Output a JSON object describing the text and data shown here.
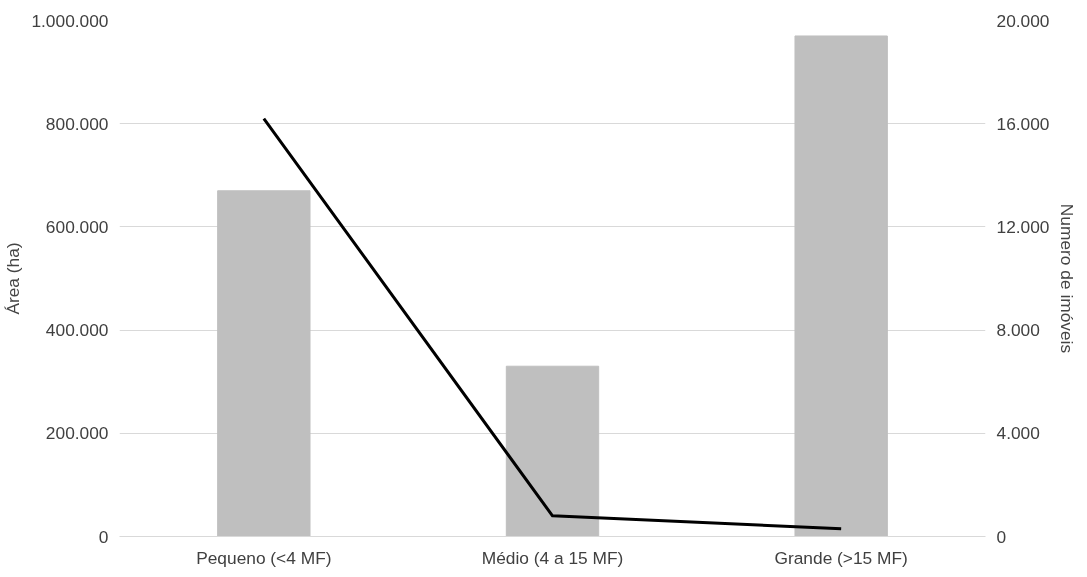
{
  "chart_data": {
    "type": "bar",
    "ylabel": "Área (ha)",
    "y2label": "Numero de imóveis",
    "categories": [
      "Pequeno (<4 MF)",
      "Médio (4 a 15 MF)",
      "Grande (>15 MF)"
    ],
    "series": [
      {
        "color": "#bfbfbf",
        "values": [
          670000,
          330000,
          970000
        ]
      },
      {
        "type": "line",
        "axis": "y2",
        "color": "#000000",
        "values": [
          16200,
          800,
          300
        ]
      }
    ],
    "ylim": [
      0,
      1000000
    ],
    "yticks": [
      {
        "value": 0,
        "label": "0"
      },
      {
        "value": 200000,
        "label": "200.000"
      },
      {
        "value": 400000,
        "label": "400.000"
      },
      {
        "value": 600000,
        "label": "600.000"
      },
      {
        "value": 800000,
        "label": "800.000"
      },
      {
        "value": 1000000,
        "label": "1.000.000"
      }
    ],
    "y2lim": [
      0,
      20000
    ],
    "y2ticks": [
      {
        "value": 0,
        "label": "0"
      },
      {
        "value": 4000,
        "label": "4.000"
      },
      {
        "value": 8000,
        "label": "8.000"
      },
      {
        "value": 12000,
        "label": "12.000"
      },
      {
        "value": 16000,
        "label": "16.000"
      },
      {
        "value": 20000,
        "label": "20.000"
      }
    ],
    "grid": "y",
    "marker": "none",
    "line_style": "solid"
  }
}
